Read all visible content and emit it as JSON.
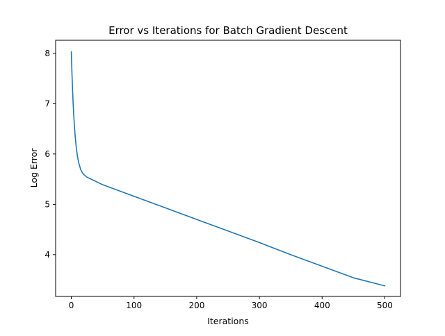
{
  "chart_data": {
    "type": "line",
    "title": "Error vs Iterations for Batch Gradient Descent",
    "xlabel": "Iterations",
    "ylabel": "Log Error",
    "xlim": [
      -25,
      525
    ],
    "ylim": [
      3.17,
      8.26
    ],
    "xticks": [
      0,
      100,
      200,
      300,
      400,
      500
    ],
    "yticks": [
      4,
      5,
      6,
      7,
      8
    ],
    "grid": false,
    "legend": "none",
    "series": [
      {
        "name": "log error",
        "color": "#1f77b4",
        "x": [
          0,
          1,
          2,
          3,
          4,
          5,
          6,
          8,
          10,
          12,
          15,
          18,
          20,
          25,
          30,
          40,
          50,
          100,
          150,
          200,
          250,
          300,
          350,
          400,
          450,
          500
        ],
        "y": [
          8.03,
          7.62,
          7.28,
          6.99,
          6.75,
          6.55,
          6.38,
          6.12,
          5.94,
          5.82,
          5.69,
          5.62,
          5.59,
          5.54,
          5.51,
          5.45,
          5.39,
          5.16,
          4.93,
          4.7,
          4.47,
          4.24,
          4.0,
          3.77,
          3.54,
          3.38
        ]
      }
    ]
  }
}
